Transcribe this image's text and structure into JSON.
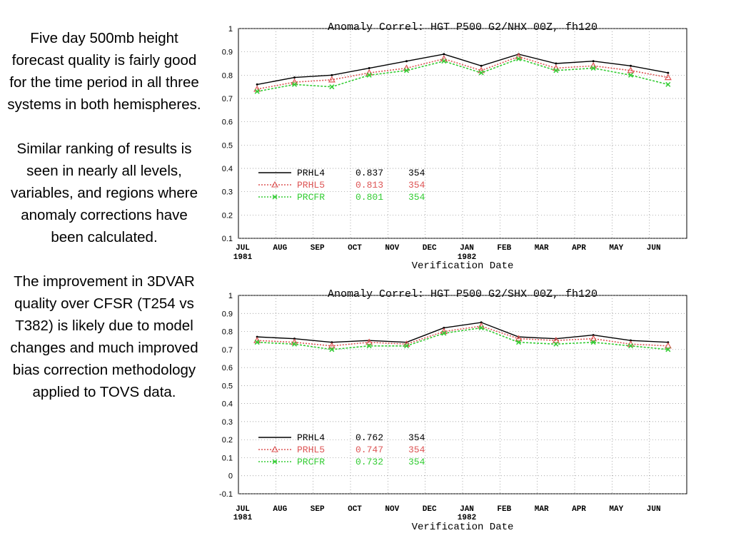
{
  "paragraphs": [
    "Five day 500mb height forecast quality is fairly good for the time period in all three systems in both hemispheres.",
    "Similar ranking of results is seen in nearly all levels, variables, and regions where anomaly corrections have been calculated.",
    "The improvement in 3DVAR quality over CFSR (T254 vs T382) is likely due to model changes and much improved bias correction methodology applied to TOVS data."
  ],
  "colors": {
    "PRHL4": "#000000",
    "PRHL5": "#dd5555",
    "PRCFR": "#33cc33"
  },
  "chart_data": [
    {
      "type": "line",
      "title": "Anomaly Correl: HGT P500 G2/NHX 00Z, fh120",
      "xlabel": "Verification Date",
      "ylabel": "",
      "ylim": [
        0.1,
        1
      ],
      "yticks": [
        "0.1",
        "0.2",
        "0.3",
        "0.4",
        "0.5",
        "0.6",
        "0.7",
        "0.8",
        "0.9",
        "1"
      ],
      "categories": [
        "JUL",
        "AUG",
        "SEP",
        "OCT",
        "NOV",
        "DEC",
        "JAN",
        "FEB",
        "MAR",
        "APR",
        "MAY",
        "JUN"
      ],
      "year_labels": [
        {
          "month": "JUL",
          "year": "1981"
        },
        {
          "month": "JAN",
          "year": "1982"
        }
      ],
      "legend_position": "lower-left",
      "series": [
        {
          "name": "PRHL4",
          "score": "0.837",
          "count": "354",
          "values": [
            0.76,
            0.79,
            0.8,
            0.83,
            0.86,
            0.89,
            0.84,
            0.89,
            0.85,
            0.86,
            0.84,
            0.81
          ]
        },
        {
          "name": "PRHL5",
          "score": "0.813",
          "count": "354",
          "values": [
            0.74,
            0.77,
            0.78,
            0.81,
            0.83,
            0.87,
            0.82,
            0.88,
            0.83,
            0.84,
            0.82,
            0.79
          ]
        },
        {
          "name": "PRCFR",
          "score": "0.801",
          "count": "354",
          "values": [
            0.73,
            0.76,
            0.75,
            0.8,
            0.82,
            0.86,
            0.81,
            0.87,
            0.82,
            0.83,
            0.8,
            0.76
          ]
        }
      ]
    },
    {
      "type": "line",
      "title": "Anomaly Correl: HGT P500 G2/SHX 00Z, fh120",
      "xlabel": "Verification Date",
      "ylabel": "",
      "ylim": [
        -0.1,
        1
      ],
      "yticks": [
        "-0.1",
        "0",
        "0.1",
        "0.2",
        "0.3",
        "0.4",
        "0.5",
        "0.6",
        "0.7",
        "0.8",
        "0.9",
        "1"
      ],
      "categories": [
        "JUL",
        "AUG",
        "SEP",
        "OCT",
        "NOV",
        "DEC",
        "JAN",
        "FEB",
        "MAR",
        "APR",
        "MAY",
        "JUN"
      ],
      "year_labels": [
        {
          "month": "JUL",
          "year": "1981"
        },
        {
          "month": "JAN",
          "year": "1982"
        }
      ],
      "legend_position": "lower-left",
      "series": [
        {
          "name": "PRHL4",
          "score": "0.762",
          "count": "354",
          "values": [
            0.77,
            0.76,
            0.74,
            0.75,
            0.74,
            0.82,
            0.85,
            0.77,
            0.76,
            0.78,
            0.75,
            0.74
          ]
        },
        {
          "name": "PRHL5",
          "score": "0.747",
          "count": "354",
          "values": [
            0.75,
            0.74,
            0.72,
            0.74,
            0.73,
            0.8,
            0.83,
            0.76,
            0.75,
            0.76,
            0.73,
            0.72
          ]
        },
        {
          "name": "PRCFR",
          "score": "0.732",
          "count": "354",
          "values": [
            0.74,
            0.73,
            0.7,
            0.72,
            0.72,
            0.79,
            0.82,
            0.74,
            0.73,
            0.74,
            0.72,
            0.7
          ]
        }
      ]
    }
  ]
}
